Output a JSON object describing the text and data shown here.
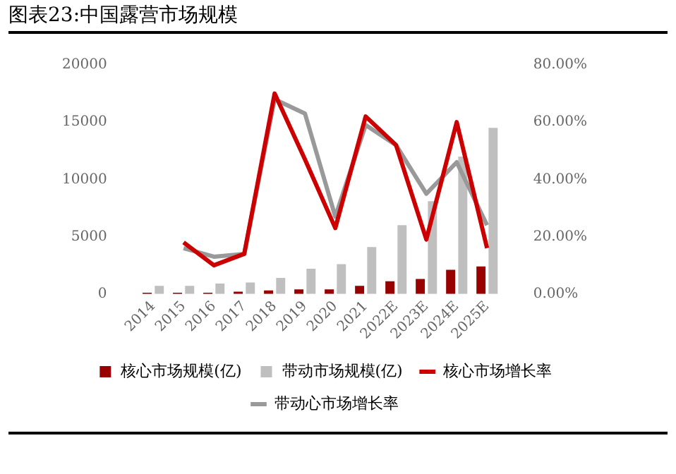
{
  "chart_data": {
    "type": "bar",
    "title": "图表23:中国露营市场规模",
    "categories": [
      "2014",
      "2015",
      "2016",
      "2017",
      "2018",
      "2019",
      "2020",
      "2021",
      "2022E",
      "2023E",
      "2024E",
      "2025E"
    ],
    "series": [
      {
        "name": "核心市场规模(亿)",
        "color": "#990000",
        "values": [
          100,
          100,
          100,
          200,
          300,
          400,
          400,
          700,
          1100,
          1300,
          2100,
          2400
        ]
      },
      {
        "name": "带动市场规模(亿)",
        "color": "#bfbfbf",
        "values": [
          700,
          700,
          900,
          1000,
          1400,
          2200,
          2600,
          4100,
          6000,
          8100,
          12000,
          14500
        ]
      },
      {
        "name": "核心市场增长率",
        "type": "line",
        "axis": "y2",
        "color": "#cc0000",
        "values": [
          null,
          18,
          10,
          14,
          70,
          47,
          23,
          62,
          52,
          19,
          60,
          16
        ]
      },
      {
        "name": "带动心市场增长率",
        "type": "line",
        "axis": "y2",
        "color": "#999999",
        "values": [
          null,
          16,
          13,
          14,
          68,
          63,
          27,
          59,
          52,
          35,
          46,
          24
        ]
      }
    ],
    "ylim": [
      0,
      20000
    ],
    "yticks": [
      0,
      5000,
      10000,
      15000,
      20000
    ],
    "y2lim": [
      0,
      80
    ],
    "y2ticks": [
      {
        "value": 0,
        "label": "0.00%"
      },
      {
        "value": 20,
        "label": "20.00%"
      },
      {
        "value": 40,
        "label": "40.00%"
      },
      {
        "value": 60,
        "label": "60.00%"
      },
      {
        "value": 80,
        "label": "80.00%"
      }
    ],
    "grid": false,
    "legend": "bottom",
    "marker": "none",
    "line_style": "solid"
  }
}
